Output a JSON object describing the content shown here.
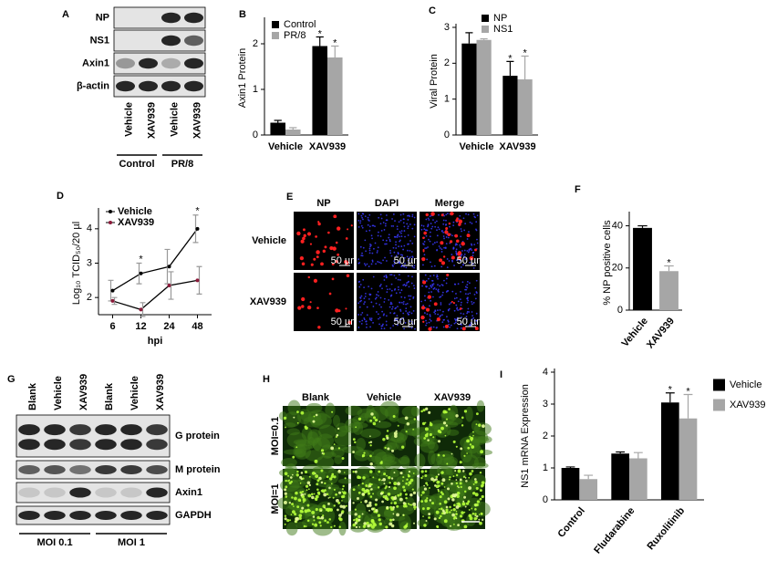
{
  "chart_data": [
    {
      "panel": "B",
      "type": "bar",
      "ylabel": "Axin1 Protein",
      "categories": [
        "Vehicle",
        "XAV939"
      ],
      "series": [
        {
          "name": "Control",
          "color": "#000000",
          "values": [
            0.27,
            1.95
          ],
          "errors": [
            0.05,
            0.2
          ],
          "labels": [
            null,
            "*"
          ]
        },
        {
          "name": "PR/8",
          "color": "#a6a6a6",
          "values": [
            0.12,
            1.7
          ],
          "errors": [
            0.04,
            0.25
          ],
          "labels": [
            null,
            "*"
          ]
        }
      ],
      "ylim": [
        0,
        2.5
      ],
      "yticks": [
        0,
        1,
        2
      ],
      "legend": "upper left"
    },
    {
      "panel": "C",
      "type": "bar",
      "ylabel": "Viral Protein",
      "categories": [
        "Vehicle",
        "XAV939"
      ],
      "series": [
        {
          "name": "NP",
          "color": "#000000",
          "values": [
            2.55,
            1.65
          ],
          "errors": [
            0.3,
            0.4
          ],
          "labels": [
            null,
            "*"
          ]
        },
        {
          "name": "NS1",
          "color": "#a6a6a6",
          "values": [
            2.65,
            1.55
          ],
          "errors": [
            0.03,
            0.65
          ],
          "labels": [
            null,
            "*"
          ]
        }
      ],
      "ylim": [
        0,
        3
      ],
      "yticks": [
        0,
        1,
        2,
        3
      ],
      "legend": "upper right"
    },
    {
      "panel": "D",
      "type": "line",
      "ylabel": "Log₁₀ TCID₅₀/20 µl",
      "xlabel": "hpi",
      "categories": [
        "6",
        "12",
        "24",
        "48"
      ],
      "series": [
        {
          "name": "Vehicle",
          "color": "#000000",
          "values": [
            2.2,
            2.7,
            2.9,
            4.0
          ],
          "errors": [
            0.3,
            0.3,
            0.5,
            0.4
          ],
          "labels": [
            null,
            "*",
            null,
            "*"
          ]
        },
        {
          "name": "XAV939",
          "color": "#8b1a3a",
          "values": [
            1.9,
            1.65,
            2.35,
            2.5
          ],
          "errors": [
            0.1,
            0.2,
            0.4,
            0.4
          ],
          "labels": [
            null,
            null,
            null,
            null
          ]
        }
      ],
      "ylim": [
        1.5,
        4.5
      ],
      "yticks": [
        2,
        3,
        4
      ],
      "legend": "upper left"
    },
    {
      "panel": "F",
      "type": "bar",
      "ylabel": "% NP positive cells",
      "categories": [
        "Vehicle",
        "XAV939"
      ],
      "values": [
        39,
        18.5
      ],
      "errors": [
        1,
        2.5
      ],
      "colors": [
        "#000000",
        "#a6a6a6"
      ],
      "labels": [
        null,
        "*"
      ],
      "ylim": [
        0,
        45
      ],
      "yticks": [
        0,
        20,
        40
      ]
    },
    {
      "panel": "I",
      "type": "bar",
      "ylabel": "NS1 mRNA Expression",
      "categories": [
        "Control",
        "Fludarabine",
        "Ruxolitinib"
      ],
      "series": [
        {
          "name": "Vehicle",
          "color": "#000000",
          "values": [
            1.0,
            1.45,
            3.05
          ],
          "errors": [
            0.03,
            0.05,
            0.3
          ],
          "labels": [
            null,
            null,
            "*"
          ]
        },
        {
          "name": "XAV939",
          "color": "#a6a6a6",
          "values": [
            0.65,
            1.3,
            2.55
          ],
          "errors": [
            0.12,
            0.18,
            0.75
          ],
          "labels": [
            null,
            null,
            "*"
          ]
        }
      ],
      "ylim": [
        0,
        4
      ],
      "yticks": [
        0,
        1,
        2,
        3,
        4
      ],
      "legend": "right"
    }
  ],
  "blots": [
    {
      "panel": "A",
      "rows": [
        "NP",
        "NS1",
        "Axin1",
        "β-actin"
      ],
      "lanes": [
        "Vehicle",
        "XAV939",
        "Vehicle",
        "XAV939"
      ],
      "groups": [
        "Control",
        "PR/8"
      ]
    },
    {
      "panel": "G",
      "rows": [
        "G protein",
        "M protein",
        "Axin1",
        "GAPDH"
      ],
      "lanes": [
        "Blank",
        "Vehicle",
        "XAV939",
        "Blank",
        "Vehicle",
        "XAV939"
      ],
      "groups": [
        "MOI 0.1",
        "MOI 1"
      ]
    }
  ],
  "micrographs": [
    {
      "panel": "E",
      "columns": [
        "NP",
        "DAPI",
        "Merge"
      ],
      "rows": [
        "Vehicle",
        "XAV939"
      ],
      "scale_bar": "50 µm"
    },
    {
      "panel": "H",
      "columns": [
        "Blank",
        "Vehicle",
        "XAV939"
      ],
      "rows": [
        "MOI=0.1",
        "MOI=1"
      ]
    }
  ]
}
